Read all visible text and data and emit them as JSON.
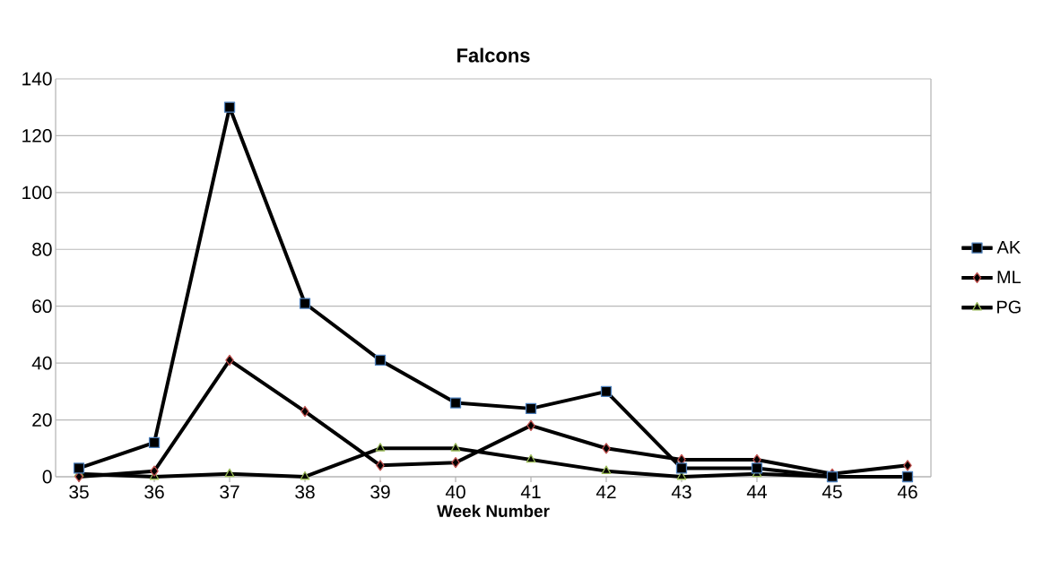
{
  "chart_data": {
    "type": "line",
    "title": "Falcons",
    "xlabel": "Week Number",
    "x": [
      35,
      36,
      37,
      38,
      39,
      40,
      41,
      42,
      43,
      44,
      45,
      46
    ],
    "series": [
      {
        "name": "AK",
        "color": "#4f81bd",
        "marker": "square",
        "values": [
          3,
          12,
          130,
          61,
          41,
          26,
          24,
          30,
          3,
          3,
          0,
          0
        ]
      },
      {
        "name": "ML",
        "color": "#c0504d",
        "marker": "diamond",
        "values": [
          0,
          2,
          41,
          23,
          4,
          5,
          18,
          10,
          6,
          6,
          1,
          4
        ]
      },
      {
        "name": "PG",
        "color": "#9bbb59",
        "marker": "triangle",
        "values": [
          1,
          0,
          1,
          0,
          10,
          10,
          6,
          2,
          0,
          1,
          0,
          0
        ]
      }
    ],
    "xlim": [
      34.69,
      46.31
    ],
    "ylim": [
      0,
      140
    ],
    "xticks": [
      35,
      36,
      37,
      38,
      39,
      40,
      41,
      42,
      43,
      44,
      45,
      46
    ],
    "yticks": [
      0,
      20,
      40,
      60,
      80,
      100,
      120,
      140
    ],
    "grid": "y",
    "legend": "right",
    "line_style": "solid"
  }
}
